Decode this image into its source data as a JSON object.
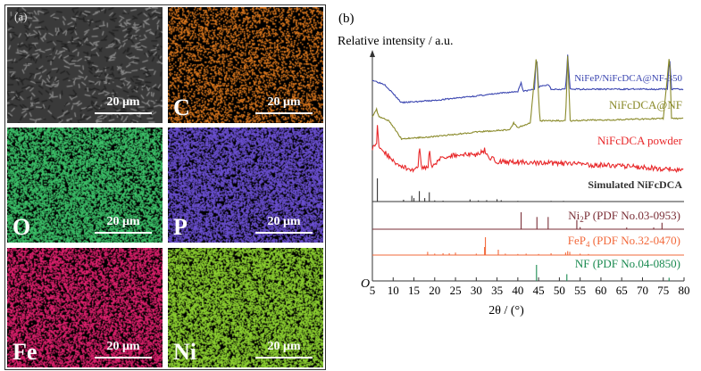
{
  "panel_a": {
    "label": "(a)",
    "scale_bar": "20 μm",
    "tiles": [
      {
        "element": "",
        "color": "#8a8a8a",
        "type": "sem"
      },
      {
        "element": "C",
        "color": "#e07a1e",
        "type": "map"
      },
      {
        "element": "O",
        "color": "#3cc26a",
        "type": "map"
      },
      {
        "element": "P",
        "color": "#6a4fd0",
        "type": "map"
      },
      {
        "element": "Fe",
        "color": "#e0206e",
        "type": "map"
      },
      {
        "element": "Ni",
        "color": "#8cd030",
        "type": "map"
      }
    ]
  },
  "chart_data": {
    "type": "line",
    "panel_label": "(b)",
    "ylabel": "Relative intensity / a.u.",
    "xlabel": "2θ / (°)",
    "origin_label": "O",
    "xlim": [
      5,
      80
    ],
    "xticks": [
      5,
      10,
      15,
      20,
      25,
      30,
      35,
      40,
      45,
      50,
      55,
      60,
      65,
      70,
      75,
      80
    ],
    "series": [
      {
        "name": "NiFeP/NiFcDCA@NF-350",
        "color": "#3a45b0",
        "points": [
          [
            5,
            89
          ],
          [
            8,
            87
          ],
          [
            12,
            79
          ],
          [
            20,
            80
          ],
          [
            30,
            82
          ],
          [
            40,
            84
          ],
          [
            40.8,
            88
          ],
          [
            41.3,
            84
          ],
          [
            44,
            85
          ],
          [
            44.5,
            100
          ],
          [
            45,
            86
          ],
          [
            47.5,
            87
          ],
          [
            48,
            85
          ],
          [
            51.5,
            85
          ],
          [
            52,
            100
          ],
          [
            52.6,
            85
          ],
          [
            76,
            85
          ],
          [
            76.5,
            100
          ],
          [
            77,
            85
          ],
          [
            80,
            85
          ]
        ]
      },
      {
        "name": "NiFcDCA@NF",
        "color": "#8a8a2a",
        "points": [
          [
            5,
            73
          ],
          [
            6,
            76
          ],
          [
            6.5,
            73
          ],
          [
            9,
            71
          ],
          [
            12,
            63
          ],
          [
            20,
            64
          ],
          [
            30,
            66
          ],
          [
            38,
            67
          ],
          [
            39,
            70
          ],
          [
            40,
            68
          ],
          [
            43,
            70
          ],
          [
            44.5,
            100
          ],
          [
            45.3,
            71
          ],
          [
            51.5,
            71
          ],
          [
            52,
            100
          ],
          [
            52.6,
            71
          ],
          [
            75,
            72
          ],
          [
            76.5,
            100
          ],
          [
            77,
            72
          ],
          [
            80,
            72
          ]
        ]
      },
      {
        "name": "NiFcDCA powder",
        "color": "#e8282a",
        "points": [
          [
            5,
            59
          ],
          [
            6,
            60
          ],
          [
            6.2,
            69
          ],
          [
            6.6,
            60
          ],
          [
            10,
            53
          ],
          [
            14,
            49
          ],
          [
            16,
            50
          ],
          [
            16.3,
            61
          ],
          [
            16.8,
            50
          ],
          [
            18.5,
            51
          ],
          [
            18.7,
            60
          ],
          [
            19.2,
            51
          ],
          [
            22,
            55
          ],
          [
            26,
            56
          ],
          [
            30,
            56
          ],
          [
            32,
            58
          ],
          [
            33,
            55
          ],
          [
            35,
            53
          ],
          [
            50,
            52
          ],
          [
            65,
            51
          ],
          [
            80,
            49
          ]
        ]
      }
    ],
    "references": [
      {
        "name": "Simulated NiFcDCA",
        "color": "#333333",
        "peaks": [
          [
            6.2,
            100
          ],
          [
            12.5,
            8
          ],
          [
            14.5,
            25
          ],
          [
            15,
            15
          ],
          [
            16.3,
            45
          ],
          [
            17.6,
            15
          ],
          [
            18.7,
            40
          ],
          [
            20,
            5
          ],
          [
            22,
            4
          ],
          [
            28.5,
            9
          ],
          [
            30.5,
            5
          ],
          [
            32.5,
            6
          ],
          [
            35,
            10
          ],
          [
            36,
            6
          ],
          [
            40,
            3
          ],
          [
            48,
            3
          ],
          [
            51,
            3
          ],
          [
            60,
            2
          ],
          [
            68,
            2
          ]
        ]
      },
      {
        "name": "Ni2P (PDF No.03-0953)",
        "name_main": "Ni",
        "name_sub": "2",
        "name_rest": "P (PDF No.03-0953)",
        "color": "#7a2e36",
        "peaks": [
          [
            40.8,
            100
          ],
          [
            44.6,
            72
          ],
          [
            47.3,
            72
          ],
          [
            54.2,
            54
          ],
          [
            55,
            12
          ],
          [
            66.2,
            10
          ],
          [
            72.7,
            10
          ],
          [
            74.7,
            38
          ]
        ]
      },
      {
        "name": "FeP4 (PDF No.32-0470)",
        "name_main": "FeP",
        "name_sub": "4",
        "name_rest": " (PDF No.32-0470)",
        "color": "#f2683a",
        "peaks": [
          [
            18.3,
            18
          ],
          [
            20,
            8
          ],
          [
            22,
            10
          ],
          [
            23.5,
            10
          ],
          [
            25,
            14
          ],
          [
            30,
            8
          ],
          [
            32,
            45
          ],
          [
            32.2,
            100
          ],
          [
            35.3,
            30
          ],
          [
            37,
            8
          ],
          [
            40,
            6
          ],
          [
            42,
            8
          ],
          [
            45,
            6
          ],
          [
            48,
            10
          ],
          [
            51.5,
            14
          ],
          [
            52,
            22
          ],
          [
            52.5,
            18
          ],
          [
            55,
            8
          ],
          [
            57,
            6
          ]
        ]
      },
      {
        "name": "NF (PDF No.04-0850)",
        "color": "#1a8a50",
        "peaks": [
          [
            44.5,
            100
          ],
          [
            51.8,
            42
          ],
          [
            76.4,
            20
          ]
        ]
      }
    ]
  }
}
